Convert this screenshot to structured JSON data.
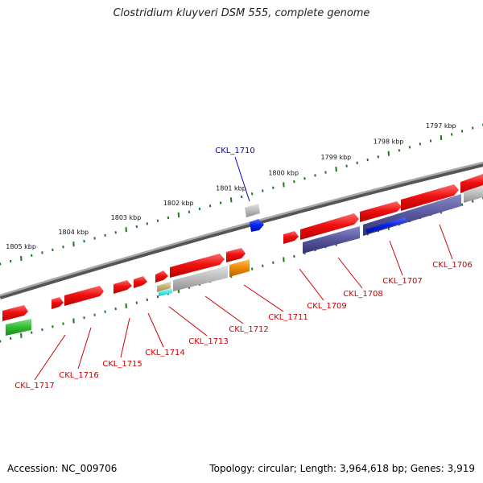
{
  "title": "Clostridium kluyveri DSM 555, complete genome",
  "accession": "Accession: NC_009706",
  "summary": "Topology: circular; Length: 3,964,618 bp; Genes: 3,919",
  "colors": {
    "backbone": "#888888",
    "ticks": "#1a7a1a",
    "forward_gene": "#ee1111",
    "reverse_gene": "#5a5aa0",
    "gene_label": "#cc0000",
    "highlight_label": "#0000cc",
    "highlight_gene": "#0022ee"
  },
  "scale_labels": [
    "1797 kbp",
    "1798 kbp",
    "1799 kbp",
    "1800 kbp",
    "1801 kbp",
    "1802 kbp",
    "1803 kbp",
    "1804 kbp",
    "1805 kbp"
  ],
  "highlight_gene": {
    "label": "CKL_1710"
  },
  "gene_labels": [
    "CKL_1706",
    "CKL_1707",
    "CKL_1708",
    "CKL_1709",
    "CKL_1711",
    "CKL_1712",
    "CKL_1713",
    "CKL_1714",
    "CKL_1715",
    "CKL_1716",
    "CKL_1717"
  ]
}
